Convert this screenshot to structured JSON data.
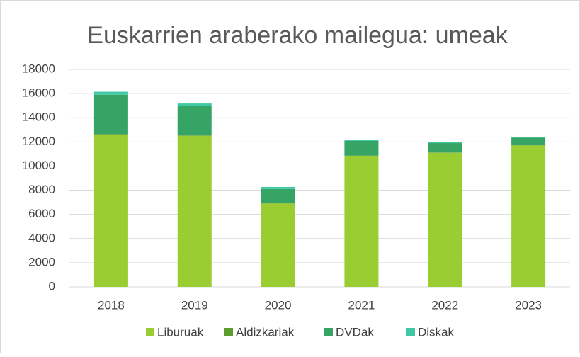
{
  "chart_data": {
    "type": "stacked_bar",
    "title": "Euskarrien araberako mailegua: umeak",
    "categories": [
      "2018",
      "2019",
      "2020",
      "2021",
      "2022",
      "2023"
    ],
    "series": [
      {
        "name": "Liburuak",
        "color": "#9acd32",
        "values": [
          12600,
          12500,
          6900,
          10850,
          11100,
          11700
        ]
      },
      {
        "name": "Aldizkariak",
        "color": "#5b9e2e",
        "values": [
          50,
          40,
          30,
          20,
          20,
          20
        ]
      },
      {
        "name": "DVDak",
        "color": "#35a464",
        "values": [
          3250,
          2410,
          1170,
          1210,
          780,
          630
        ]
      },
      {
        "name": "Diskak",
        "color": "#40c8a4",
        "values": [
          250,
          230,
          170,
          110,
          100,
          60
        ]
      }
    ],
    "ylim": [
      0,
      18000
    ],
    "yticks": [
      0,
      2000,
      4000,
      6000,
      8000,
      10000,
      12000,
      14000,
      16000,
      18000
    ],
    "grid": true,
    "legend": "bottom"
  }
}
